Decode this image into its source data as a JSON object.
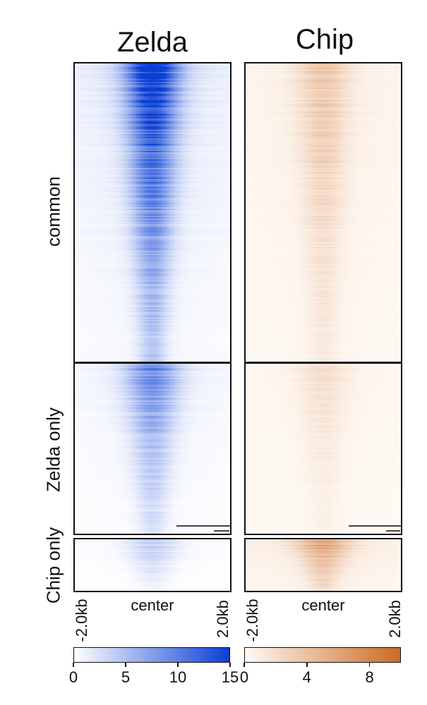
{
  "chart_data": {
    "type": "heatmap",
    "columns": [
      {
        "name": "Zelda",
        "color_low": "#ffffff",
        "color_high": "#0b3fd4",
        "colorbar": {
          "range": [
            0,
            15
          ],
          "ticks": [
            "0",
            "5",
            "10",
            "15"
          ]
        }
      },
      {
        "name": "Chip",
        "color_low": "#fffaf5",
        "color_high": "#cc6a24",
        "colorbar": {
          "range": [
            0,
            10
          ],
          "ticks": [
            "0",
            "4",
            "8"
          ]
        }
      }
    ],
    "row_groups": [
      {
        "label": "common",
        "relative_peak_intensity": [
          1.0,
          0.2
        ]
      },
      {
        "label": "Zelda only",
        "relative_peak_intensity": [
          0.55,
          0.1
        ]
      },
      {
        "label": "Chip only",
        "relative_peak_intensity": [
          0.25,
          0.35
        ]
      }
    ],
    "x_axis": {
      "ticks": [
        "-2.0kb",
        "center",
        "2.0kb"
      ],
      "range_kb": [
        -2.0,
        2.0
      ]
    },
    "grid": false,
    "legend": "bottom colorbars"
  }
}
